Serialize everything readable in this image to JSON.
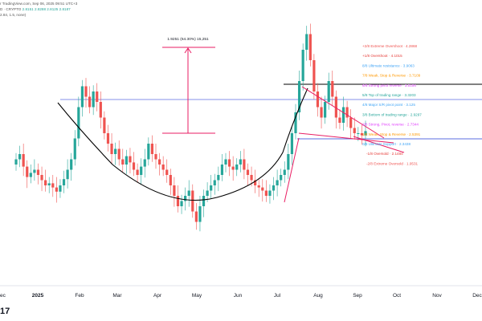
{
  "header": {
    "line1": "r TradingView.com, Sep 06, 2025 09:51 UTC+3",
    "line2_prefix": "D · CRYPTO ",
    "line2_values": "2.8151  2.8288  2.8125  2.8187",
    "line3": "2.84, 1.5, none)"
  },
  "colors": {
    "up": "#26a69a",
    "down": "#ef5350",
    "trend": "#e91e63",
    "arc": "#000000",
    "support": "#5b6ee1"
  },
  "chart_data": {
    "type": "candlestick",
    "x_ticks": [
      "ec",
      "2025",
      "Feb",
      "Mar",
      "Apr",
      "May",
      "Jun",
      "Jul",
      "Aug",
      "Sep",
      "Oct",
      "Nov",
      "Dec"
    ],
    "price_range_annotation": "1.9251 (64.30%) 15,251",
    "murrey_levels": [
      {
        "label": "+2/8 Extreme Overshoot",
        "value": "4.2868",
        "color": "#ef5350"
      },
      {
        "label": "+1/8 Overshoot",
        "value": "4.1015",
        "color": "#e53935"
      },
      {
        "label": "8/8 Ultimate resistance",
        "value": "3.9063",
        "color": "#42a5f5"
      },
      {
        "label": "7/8 Weak, Stop & Reverse",
        "value": "3.7109",
        "color": "#ff9800"
      },
      {
        "label": "6/8 Strong pivot reverse",
        "value": "3.5156",
        "color": "#e040fb"
      },
      {
        "label": "5/8 Top of trading range",
        "value": "3.3203",
        "color": "#26a69a"
      },
      {
        "label": "4/8 Major S/R pivot point",
        "value": "3.125",
        "color": "#42a5f5"
      },
      {
        "label": "3/8 Bottom of trading range",
        "value": "2.9297",
        "color": "#26a69a"
      },
      {
        "label": "2/8 Strong, Pivot, reverse",
        "value": "2.7344",
        "color": "#e040fb"
      },
      {
        "label": "1/8 Weak, Stop & Reverse",
        "value": "2.5391",
        "color": "#ff9800"
      },
      {
        "label": "0/8 Ultimate Support",
        "value": "2.3438",
        "color": "#42a5f5"
      },
      {
        "label": "-1/8 Oversold",
        "value": "2.1484",
        "color": "#e53935"
      },
      {
        "label": "-2/8 Extreme Oversold",
        "value": "1.9531",
        "color": "#ef5350"
      }
    ],
    "close_approx": [
      2.55,
      2.6,
      2.48,
      2.38,
      2.42,
      2.45,
      2.4,
      2.35,
      2.3,
      2.32,
      2.28,
      2.24,
      2.3,
      2.36,
      2.45,
      2.55,
      2.75,
      3.05,
      3.25,
      3.15,
      3.05,
      3.2,
      3.1,
      2.95,
      2.8,
      2.7,
      2.6,
      2.65,
      2.55,
      2.5,
      2.58,
      2.52,
      2.45,
      2.4,
      2.48,
      2.55,
      2.7,
      2.6,
      2.55,
      2.5,
      2.45,
      2.4,
      2.3,
      2.2,
      2.1,
      2.15,
      2.2,
      2.25,
      2.05,
      1.95,
      2.1,
      2.2,
      2.25,
      2.3,
      2.35,
      2.4,
      2.5,
      2.55,
      2.48,
      2.45,
      2.5,
      2.55,
      2.45,
      2.4,
      2.35,
      2.3,
      2.28,
      2.25,
      2.2,
      2.25,
      2.3,
      2.35,
      2.4,
      2.45,
      2.6,
      2.8,
      3.0,
      3.3,
      3.6,
      3.75,
      3.5,
      3.2,
      3.05,
      2.95,
      3.1,
      3.3,
      3.15,
      2.95,
      2.9,
      3.05,
      2.95,
      2.85,
      2.8,
      2.8,
      2.78,
      2.82
    ]
  }
}
